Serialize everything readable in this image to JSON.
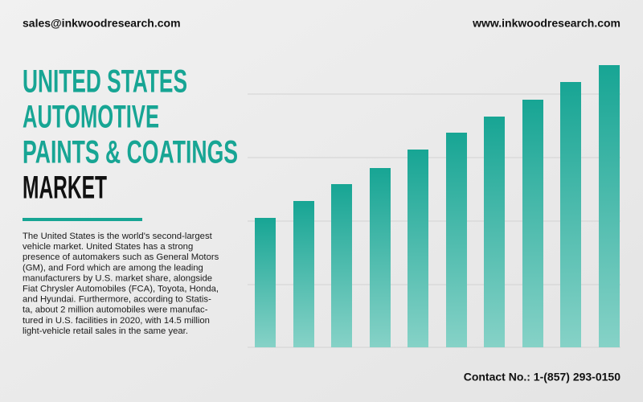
{
  "header": {
    "email": "sales@inkwoodresearch.com",
    "website": "www.inkwoodresearch.com"
  },
  "title": {
    "lines": [
      "UNITED STATES",
      "AUTOMOTIVE",
      "PAINTS & COATINGS"
    ],
    "last_line": "MARKET"
  },
  "description": {
    "lines": [
      "The United States is the world's second-largest",
      "vehicle market. United States has a strong",
      "presence of automakers such as General Motors",
      "(GM), and Ford which are among the leading",
      "manufacturers by U.S. market share, alongside",
      "Fiat Chrysler Automobiles (FCA), Toyota, Honda,",
      "and Hyundai.  Furthermore, according to Statis-",
      "ta, about 2 million automobiles were manufac-",
      "tured in U.S. facilities in 2020, with 14.5 million",
      "light-vehicle retail sales in the same year."
    ]
  },
  "footer": {
    "contact": "Contact No.: 1-(857) 293-0150"
  }
}
